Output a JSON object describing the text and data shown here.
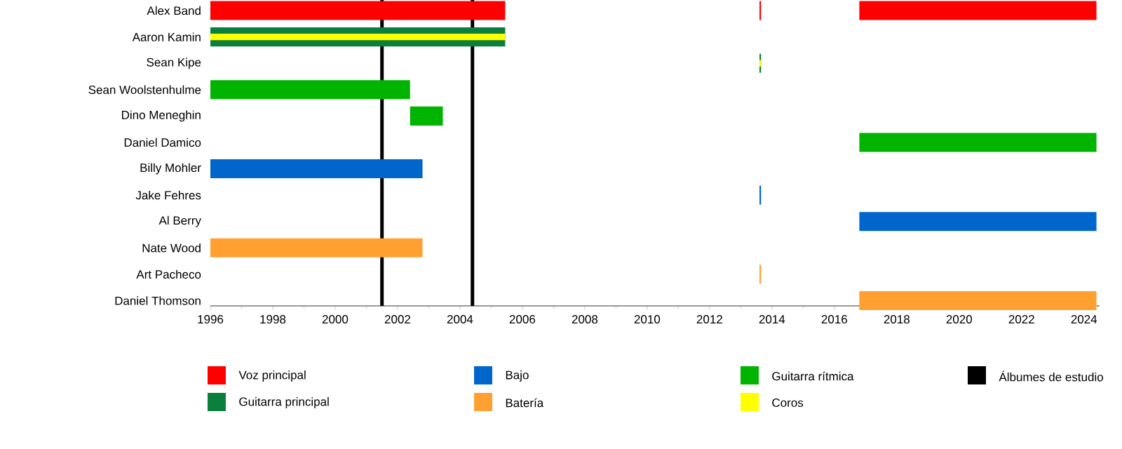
{
  "chart_data": {
    "type": "bar",
    "orientation": "horizontal",
    "categories": [
      "Alex Band",
      "Aaron Kamin",
      "Sean Kipe",
      "Sean Woolstenhulme",
      "Dino Meneghin",
      "Daniel Damico",
      "Billy Mohler",
      "Jake Fehres",
      "Al Berry",
      "Nate Wood",
      "Art Pacheco",
      "Daniel Thomson"
    ],
    "series": [
      {
        "name": "Voz principal",
        "color": "#ff0000",
        "base": [
          1996,
          null,
          null,
          null,
          null,
          null,
          null,
          null,
          null,
          null,
          null,
          null
        ],
        "values": [
          9.45,
          null,
          null,
          null,
          null,
          null,
          null,
          null,
          null,
          null,
          null,
          null
        ]
      },
      {
        "color": "#ff0000",
        "base": [
          2013.6,
          null,
          null,
          null,
          null,
          null,
          null,
          null,
          null,
          null,
          null,
          null
        ],
        "values": [
          0.05,
          null,
          null,
          null,
          null,
          null,
          null,
          null,
          null,
          null,
          null,
          null
        ]
      },
      {
        "color": "#ff0000",
        "base": [
          2016.8,
          null,
          null,
          null,
          null,
          null,
          null,
          null,
          null,
          null,
          null,
          null
        ],
        "values": [
          7.6,
          null,
          null,
          null,
          null,
          null,
          null,
          null,
          null,
          null,
          null,
          null
        ]
      },
      {
        "name": "Guitarra principal",
        "color": "#0b7f3c",
        "base": [
          null,
          1996,
          2013.6,
          null,
          null,
          null,
          null,
          null,
          null,
          null,
          null,
          null
        ],
        "values": [
          null,
          9.45,
          0.05,
          null,
          null,
          null,
          null,
          null,
          null,
          null,
          null,
          null
        ]
      },
      {
        "name": "Bajo",
        "color": "#0066cc",
        "base": [
          null,
          null,
          null,
          null,
          null,
          null,
          1996,
          2013.6,
          2016.8,
          null,
          null,
          null
        ],
        "values": [
          null,
          null,
          null,
          null,
          null,
          null,
          6.8,
          0.05,
          7.6,
          null,
          null,
          null
        ]
      },
      {
        "name": "Batería",
        "color": "#ffa030",
        "base": [
          null,
          null,
          null,
          null,
          null,
          null,
          null,
          null,
          null,
          1996,
          2013.6,
          2016.8
        ],
        "values": [
          null,
          null,
          null,
          null,
          null,
          null,
          null,
          null,
          null,
          6.8,
          0.05,
          7.6
        ]
      },
      {
        "name": "Guitarra rítmica",
        "color": "#00b400",
        "base": [
          null,
          null,
          null,
          1996,
          2002.4,
          2016.8,
          null,
          null,
          null,
          null,
          null,
          null
        ],
        "values": [
          null,
          null,
          null,
          6.4,
          1.05,
          7.6,
          null,
          null,
          null,
          null,
          null,
          null
        ]
      },
      {
        "name": "Coros",
        "color": "#ffff00",
        "base": [
          null,
          1996,
          2013.6,
          null,
          null,
          null,
          null,
          null,
          null,
          null,
          null,
          null
        ],
        "values": [
          null,
          9.45,
          0.05,
          null,
          null,
          null,
          null,
          null,
          null,
          null,
          null,
          null
        ]
      }
    ],
    "ref_lines": [
      {
        "axis": "x",
        "value": 2001.5,
        "label": "Álbumes de estudio",
        "color": "#000000"
      },
      {
        "axis": "x",
        "value": 2004.4,
        "color": "#000000"
      }
    ],
    "xlim": [
      1996,
      2024.5
    ],
    "xticks": [
      1996,
      1998,
      2000,
      2002,
      2004,
      2006,
      2008,
      2010,
      2012,
      2014,
      2016,
      2018,
      2020,
      2022,
      2024
    ],
    "grid": false,
    "legend": "bottom"
  }
}
